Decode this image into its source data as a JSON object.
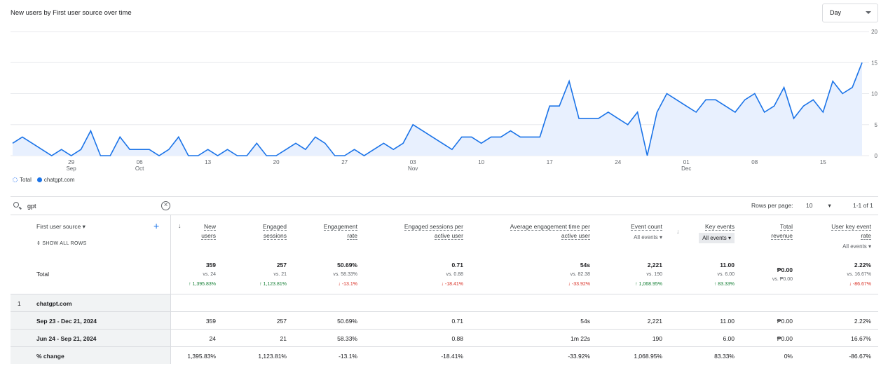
{
  "chart": {
    "title": "New users by First user source over time",
    "range": "Day",
    "yticks": [
      "20",
      "15",
      "10",
      "5",
      "0"
    ],
    "xticks": [
      {
        "day": "29",
        "month": "Sep"
      },
      {
        "day": "06",
        "month": "Oct"
      },
      {
        "day": "13",
        "month": ""
      },
      {
        "day": "20",
        "month": ""
      },
      {
        "day": "27",
        "month": ""
      },
      {
        "day": "03",
        "month": "Nov"
      },
      {
        "day": "10",
        "month": ""
      },
      {
        "day": "17",
        "month": ""
      },
      {
        "day": "24",
        "month": ""
      },
      {
        "day": "01",
        "month": "Dec"
      },
      {
        "day": "08",
        "month": ""
      },
      {
        "day": "15",
        "month": ""
      }
    ],
    "legend": [
      "Total",
      "chatgpt.com"
    ],
    "line_color": "#1a73e8",
    "fill_color": "#e8f0fe"
  },
  "chart_data": {
    "type": "area",
    "title": "New users by First user source over time",
    "x_start": "Sep 23, 2024",
    "x_end": "Dec 21, 2024",
    "ylim": [
      0,
      20
    ],
    "series": [
      {
        "name": "chatgpt.com",
        "values": [
          2,
          3,
          2,
          1,
          0,
          1,
          0,
          1,
          4,
          0,
          0,
          3,
          1,
          1,
          1,
          0,
          1,
          3,
          0,
          0,
          1,
          0,
          1,
          0,
          0,
          2,
          0,
          0,
          1,
          2,
          1,
          3,
          2,
          0,
          0,
          1,
          0,
          1,
          2,
          1,
          2,
          5,
          4,
          3,
          2,
          1,
          3,
          3,
          2,
          3,
          3,
          4,
          3,
          3,
          3,
          8,
          8,
          12,
          6,
          6,
          6,
          7,
          6,
          5,
          7,
          0,
          7,
          10,
          9,
          8,
          7,
          9,
          9,
          8,
          7,
          9,
          10,
          7,
          8,
          11,
          6,
          8,
          9,
          7,
          12,
          10,
          11,
          15
        ]
      }
    ]
  },
  "search": {
    "value": "gpt"
  },
  "pager": {
    "rows_label": "Rows per page:",
    "rows_value": "10",
    "range": "1-1 of 1"
  },
  "table": {
    "dimension_label": "First user source",
    "show_all": "SHOW ALL ROWS",
    "columns": [
      {
        "title": [
          "New",
          "users"
        ],
        "sub": ""
      },
      {
        "title": [
          "Engaged",
          "sessions"
        ],
        "sub": ""
      },
      {
        "title": [
          "Engagement",
          "rate"
        ],
        "sub": ""
      },
      {
        "title": [
          "Engaged sessions per",
          "active user"
        ],
        "sub": ""
      },
      {
        "title": [
          "Average engagement time per",
          "active user"
        ],
        "sub": ""
      },
      {
        "title": [
          "Event count"
        ],
        "sub": "All events"
      },
      {
        "title": [
          "Key events"
        ],
        "sub": "All events"
      },
      {
        "title": [
          "Total",
          "revenue"
        ],
        "sub": ""
      },
      {
        "title": [
          "User key event",
          "rate"
        ],
        "sub": "All events"
      }
    ],
    "total_label": "Total",
    "totals": [
      {
        "value": "359",
        "vs": "vs. 24",
        "change": "↑ 1,395.83%",
        "dir": "up"
      },
      {
        "value": "257",
        "vs": "vs. 21",
        "change": "↑ 1,123.81%",
        "dir": "up"
      },
      {
        "value": "50.69%",
        "vs": "vs. 58.33%",
        "change": "↓ -13.1%",
        "dir": "down"
      },
      {
        "value": "0.71",
        "vs": "vs. 0.88",
        "change": "↓ -18.41%",
        "dir": "down"
      },
      {
        "value": "54s",
        "vs": "vs. 82.38",
        "change": "↓ -33.92%",
        "dir": "down"
      },
      {
        "value": "2,221",
        "vs": "vs. 190",
        "change": "↑ 1,068.95%",
        "dir": "up"
      },
      {
        "value": "11.00",
        "vs": "vs. 6.00",
        "change": "↑ 83.33%",
        "dir": "up"
      },
      {
        "value": "₱0.00",
        "vs": "vs. ₱0.00",
        "change": "",
        "dir": ""
      },
      {
        "value": "2.22%",
        "vs": "vs. 16.67%",
        "change": "↓ -86.67%",
        "dir": "down"
      }
    ],
    "group": {
      "index": "1",
      "name": "chatgpt.com"
    },
    "rows": [
      {
        "label": "Sep 23 - Dec 21, 2024",
        "cells": [
          "359",
          "257",
          "50.69%",
          "0.71",
          "54s",
          "2,221",
          "11.00",
          "₱0.00",
          "2.22%"
        ]
      },
      {
        "label": "Jun 24 - Sep 21, 2024",
        "cells": [
          "24",
          "21",
          "58.33%",
          "0.88",
          "1m 22s",
          "190",
          "6.00",
          "₱0.00",
          "16.67%"
        ]
      },
      {
        "label": "% change",
        "cells": [
          "1,395.83%",
          "1,123.81%",
          "-13.1%",
          "-18.41%",
          "-33.92%",
          "1,068.95%",
          "83.33%",
          "0%",
          "-86.67%"
        ]
      }
    ]
  }
}
